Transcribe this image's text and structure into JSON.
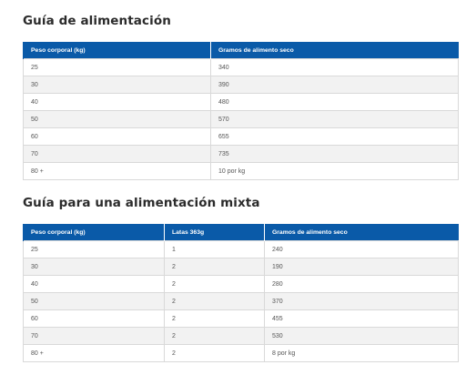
{
  "feeding_guide": {
    "title": "Guía de alimentación",
    "headers": [
      "Peso corporal (kg)",
      "Gramos de alimento seco"
    ],
    "rows": [
      [
        "25",
        "340"
      ],
      [
        "30",
        "390"
      ],
      [
        "40",
        "480"
      ],
      [
        "50",
        "570"
      ],
      [
        "60",
        "655"
      ],
      [
        "70",
        "735"
      ],
      [
        "80 +",
        "10 por kg"
      ]
    ]
  },
  "mixed_guide": {
    "title": "Guía para una alimentación mixta",
    "headers": [
      "Peso corporal (kg)",
      "Latas 363g",
      "Gramos de alimento seco"
    ],
    "rows": [
      [
        "25",
        "1",
        "240"
      ],
      [
        "30",
        "2",
        "190"
      ],
      [
        "40",
        "2",
        "280"
      ],
      [
        "50",
        "2",
        "370"
      ],
      [
        "60",
        "2",
        "455"
      ],
      [
        "70",
        "2",
        "530"
      ],
      [
        "80 +",
        "2",
        "8 por kg"
      ]
    ]
  },
  "colors": {
    "header_bg": "#0a5aa8",
    "stripe_bg": "#f2f2f2",
    "border": "#d9d9d9"
  }
}
